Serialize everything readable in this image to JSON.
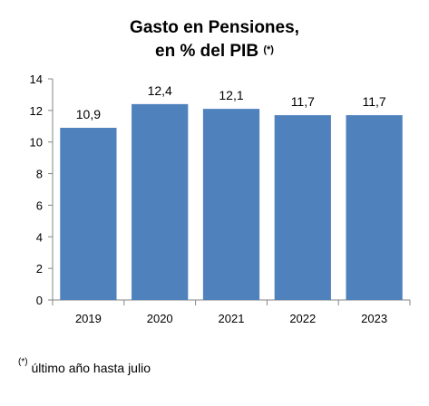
{
  "chart_data": {
    "type": "bar",
    "title_line1": "Gasto en Pensiones,",
    "title_line2": "en % del PIB",
    "title_marker": "(*)",
    "categories": [
      "2019",
      "2020",
      "2021",
      "2022",
      "2023"
    ],
    "values": [
      10.9,
      12.4,
      12.1,
      11.7,
      11.7
    ],
    "data_labels": [
      "10,9",
      "12,4",
      "12,1",
      "11,7",
      "11,7"
    ],
    "ylim": [
      0,
      14
    ],
    "yticks": [
      0,
      2,
      4,
      6,
      8,
      10,
      12,
      14
    ],
    "xlabel": "",
    "ylabel": "",
    "bar_color": "#4f81bd",
    "grid": false,
    "legend": "none"
  },
  "footnote": {
    "marker": "(*)",
    "text": "último año hasta julio"
  }
}
